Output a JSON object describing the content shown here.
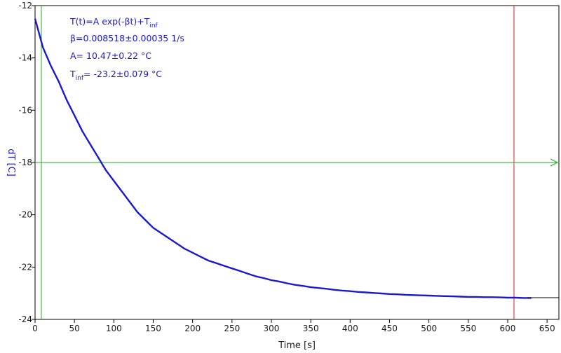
{
  "chart_data": {
    "type": "line",
    "title": "",
    "xlabel": "Time [s]",
    "ylabel": "dT [C]",
    "xlim": [
      0,
      665
    ],
    "ylim": [
      -24,
      -12
    ],
    "xticks": [
      0,
      50,
      100,
      150,
      200,
      250,
      300,
      350,
      400,
      450,
      500,
      550,
      600,
      650
    ],
    "yticks": [
      -12,
      -14,
      -16,
      -18,
      -20,
      -22,
      -24
    ],
    "grid": false,
    "annotations": {
      "formula_main": "T(t)=A exp(-βt)+T",
      "formula_sub": "inf",
      "beta": "β=0.008518±0.00035 1/s",
      "amplitude": "A= 10.47±0.22 °C",
      "tinf_main": "T",
      "tinf_sub": "inf",
      "tinf_value": "= -23.2±0.079 °C"
    },
    "markers": {
      "green_vertical_x": 8,
      "red_vertical_x": 608,
      "green_horizontal_y": -18,
      "colors": {
        "green": "#22aa22",
        "red": "#cc2222",
        "data": "#1a1acc",
        "fit": "#000000"
      }
    },
    "fit": {
      "A": 10.47,
      "beta": 0.008518,
      "T_inf": -23.2
    },
    "series": [
      {
        "style": "data",
        "x": [
          0,
          10,
          20,
          30,
          40,
          50,
          60,
          70,
          80,
          90,
          100,
          110,
          120,
          130,
          140,
          150,
          160,
          170,
          180,
          190,
          200,
          210,
          220,
          230,
          240,
          250,
          260,
          270,
          280,
          290,
          300,
          310,
          320,
          330,
          340,
          350,
          360,
          370,
          380,
          390,
          400,
          410,
          420,
          430,
          440,
          450,
          460,
          470,
          480,
          490,
          500,
          510,
          520,
          530,
          540,
          550,
          560,
          570,
          580,
          590,
          600,
          610,
          620,
          630
        ],
        "y": [
          -12.5,
          -13.6,
          -14.3,
          -14.9,
          -15.6,
          -16.2,
          -16.8,
          -17.3,
          -17.8,
          -18.3,
          -18.7,
          -19.1,
          -19.5,
          -19.9,
          -20.2,
          -20.5,
          -20.7,
          -20.9,
          -21.1,
          -21.3,
          -21.45,
          -21.6,
          -21.75,
          -21.85,
          -21.95,
          -22.05,
          -22.15,
          -22.25,
          -22.35,
          -22.42,
          -22.5,
          -22.55,
          -22.62,
          -22.68,
          -22.72,
          -22.77,
          -22.8,
          -22.83,
          -22.87,
          -22.9,
          -22.92,
          -22.95,
          -22.97,
          -22.99,
          -23.01,
          -23.03,
          -23.04,
          -23.06,
          -23.07,
          -23.08,
          -23.09,
          -23.1,
          -23.11,
          -23.12,
          -23.13,
          -23.14,
          -23.14,
          -23.15,
          -23.15,
          -23.16,
          -23.17,
          -23.17,
          -23.18,
          -23.18
        ]
      },
      {
        "style": "fit",
        "x": [
          625,
          665
        ],
        "y": [
          -23.17,
          -23.17
        ]
      }
    ]
  }
}
